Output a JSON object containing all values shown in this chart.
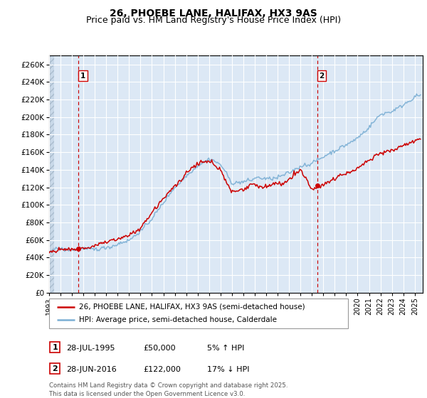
{
  "title": "26, PHOEBE LANE, HALIFAX, HX3 9AS",
  "subtitle": "Price paid vs. HM Land Registry's House Price Index (HPI)",
  "xlim_start": 1993.0,
  "xlim_end": 2025.7,
  "ylim_min": 0,
  "ylim_max": 270000,
  "yticks": [
    0,
    20000,
    40000,
    60000,
    80000,
    100000,
    120000,
    140000,
    160000,
    180000,
    200000,
    220000,
    240000,
    260000
  ],
  "hpi_color": "#7bafd4",
  "price_color": "#cc0000",
  "point1_x": 1995.57,
  "point1_y": 50000,
  "point2_x": 2016.49,
  "point2_y": 122000,
  "vline1_x": 1995.57,
  "vline2_x": 2016.49,
  "legend_price_label": "26, PHOEBE LANE, HALIFAX, HX3 9AS (semi-detached house)",
  "legend_hpi_label": "HPI: Average price, semi-detached house, Calderdale",
  "table_row1": [
    "1",
    "28-JUL-1995",
    "£50,000",
    "5% ↑ HPI"
  ],
  "table_row2": [
    "2",
    "28-JUN-2016",
    "£122,000",
    "17% ↓ HPI"
  ],
  "footer": "Contains HM Land Registry data © Crown copyright and database right 2025.\nThis data is licensed under the Open Government Licence v3.0.",
  "bg_color": "#dce8f5",
  "grid_color": "#ffffff",
  "hpi_nodes_x": [
    1993,
    1994,
    1995,
    1996,
    1997,
    1998,
    1999,
    2000,
    2001,
    2002,
    2003,
    2004,
    2005,
    2006,
    2007,
    2008,
    2009,
    2010,
    2011,
    2012,
    2013,
    2014,
    2015,
    2016,
    2017,
    2018,
    2019,
    2020,
    2021,
    2022,
    2023,
    2024,
    2025
  ],
  "hpi_nodes_y": [
    46000,
    47500,
    49000,
    51000,
    52000,
    54000,
    57000,
    62000,
    72000,
    88000,
    105000,
    122000,
    136000,
    148000,
    155000,
    148000,
    125000,
    128000,
    130000,
    128000,
    130000,
    136000,
    142000,
    148000,
    155000,
    162000,
    168000,
    174000,
    185000,
    200000,
    205000,
    212000,
    220000
  ],
  "price_nodes_x": [
    1993,
    1994,
    1995,
    1996,
    1997,
    1998,
    1999,
    2000,
    2001,
    2002,
    2003,
    2004,
    2005,
    2006,
    2007,
    2008,
    2009,
    2010,
    2011,
    2012,
    2013,
    2014,
    2015,
    2016,
    2017,
    2018,
    2019,
    2020,
    2021,
    2022,
    2023,
    2024,
    2025
  ],
  "price_nodes_y": [
    47000,
    48500,
    50000,
    51000,
    53000,
    55000,
    58000,
    63000,
    73000,
    91000,
    108000,
    125000,
    140000,
    152000,
    156000,
    146000,
    122000,
    125000,
    128000,
    127000,
    130000,
    137000,
    145000,
    122000,
    128000,
    135000,
    142000,
    148000,
    157000,
    165000,
    170000,
    175000,
    182000
  ],
  "title_fontsize": 10,
  "subtitle_fontsize": 9
}
